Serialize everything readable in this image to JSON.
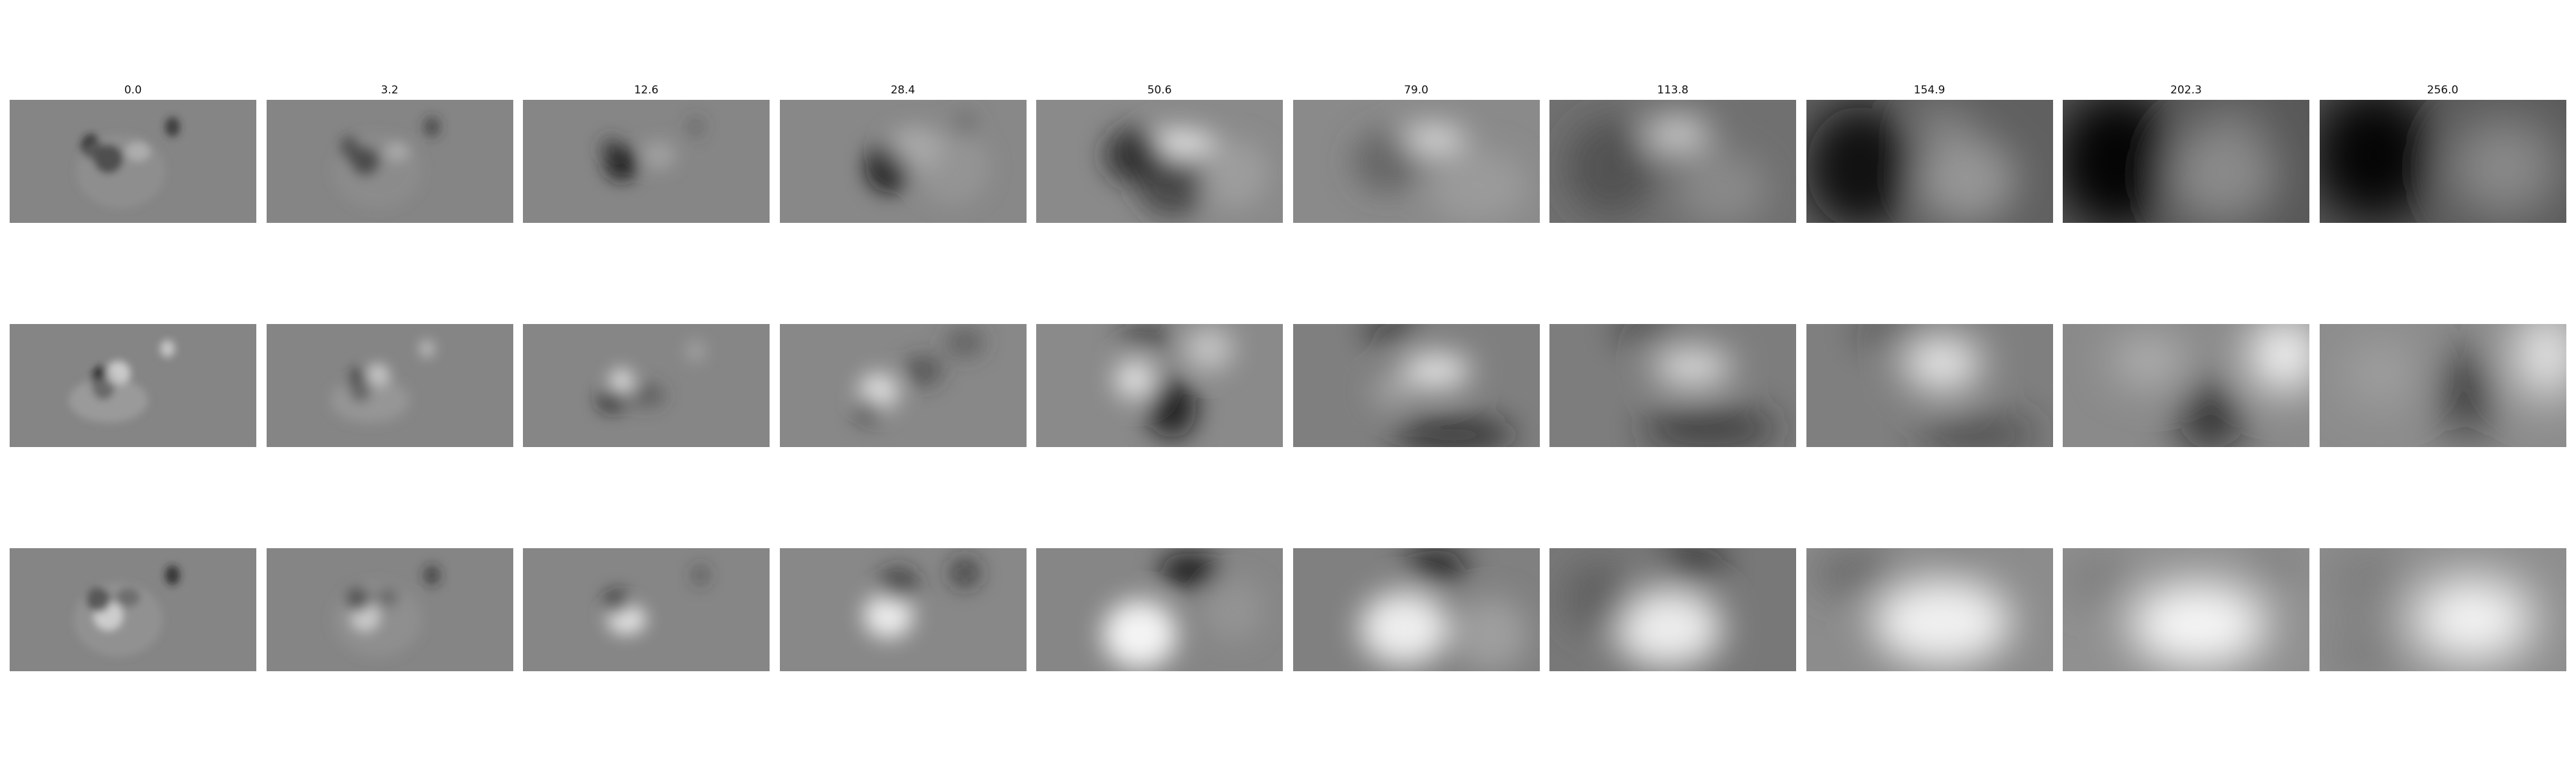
{
  "columns": [
    "0.0",
    "3.2",
    "12.6",
    "28.4",
    "50.6",
    "79.0",
    "113.8",
    "154.9",
    "202.3",
    "256.0"
  ],
  "rows": [
    {
      "panels": [
        {
          "bg": "#858585",
          "blobs": [
            [
              0.4,
              0.48,
              0.06,
              0.12,
              "#1a1a1a",
              0.9
            ],
            [
              0.33,
              0.38,
              0.04,
              0.1,
              "#202020",
              0.8
            ],
            [
              0.52,
              0.42,
              0.05,
              0.08,
              "#c8c8c8",
              0.7
            ],
            [
              0.66,
              0.22,
              0.03,
              0.08,
              "#2a2a2a",
              0.8
            ],
            [
              0.45,
              0.58,
              0.18,
              0.3,
              "#a0a0a0",
              0.35
            ]
          ]
        },
        {
          "bg": "#858585",
          "blobs": [
            [
              0.4,
              0.5,
              0.06,
              0.12,
              "#1c1c1c",
              0.85
            ],
            [
              0.34,
              0.4,
              0.04,
              0.1,
              "#222222",
              0.75
            ],
            [
              0.53,
              0.42,
              0.05,
              0.08,
              "#c4c4c4",
              0.65
            ],
            [
              0.67,
              0.22,
              0.03,
              0.08,
              "#2c2c2c",
              0.75
            ],
            [
              0.45,
              0.58,
              0.18,
              0.3,
              "#9c9c9c",
              0.3
            ]
          ]
        },
        {
          "bg": "#868686",
          "blobs": [
            [
              0.4,
              0.52,
              0.07,
              0.14,
              "#151515",
              0.85
            ],
            [
              0.36,
              0.4,
              0.05,
              0.1,
              "#333333",
              0.6
            ],
            [
              0.55,
              0.45,
              0.07,
              0.12,
              "#b8b8b8",
              0.5
            ],
            [
              0.7,
              0.22,
              0.03,
              0.08,
              "#444444",
              0.5
            ]
          ]
        },
        {
          "bg": "#888888",
          "blobs": [
            [
              0.44,
              0.55,
              0.09,
              0.2,
              "#0c0c0c",
              0.9
            ],
            [
              0.55,
              0.4,
              0.12,
              0.18,
              "#c0c0c0",
              0.6
            ],
            [
              0.7,
              0.55,
              0.15,
              0.3,
              "#a0a0a0",
              0.5
            ],
            [
              0.75,
              0.2,
              0.05,
              0.1,
              "#555555",
              0.5
            ]
          ]
        },
        {
          "bg": "#8a8a8a",
          "blobs": [
            [
              0.56,
              0.35,
              0.17,
              0.1,
              "#f0f0f0",
              0.95
            ],
            [
              0.4,
              0.45,
              0.12,
              0.22,
              "#202020",
              0.85
            ],
            [
              0.55,
              0.7,
              0.14,
              0.25,
              "#303030",
              0.7
            ],
            [
              0.8,
              0.6,
              0.14,
              0.28,
              "#b0b0b0",
              0.5
            ]
          ]
        },
        {
          "bg": "#8a8a8a",
          "blobs": [
            [
              0.56,
              0.32,
              0.14,
              0.09,
              "#f8f8f8",
              0.95
            ],
            [
              0.38,
              0.5,
              0.14,
              0.26,
              "#505050",
              0.6
            ],
            [
              0.75,
              0.7,
              0.2,
              0.3,
              "#b0b0b0",
              0.45
            ]
          ]
        },
        {
          "bg": "#707070",
          "blobs": [
            [
              0.52,
              0.28,
              0.13,
              0.12,
              "#eeeeee",
              0.95
            ],
            [
              0.25,
              0.55,
              0.18,
              0.4,
              "#404040",
              0.65
            ],
            [
              0.7,
              0.72,
              0.18,
              0.3,
              "#9a9a9a",
              0.6
            ]
          ]
        },
        {
          "bg": "#606060",
          "blobs": [
            [
              0.22,
              0.55,
              0.22,
              0.5,
              "#0a0a0a",
              0.95
            ],
            [
              0.65,
              0.65,
              0.2,
              0.35,
              "#a8a8a8",
              0.75
            ],
            [
              0.55,
              0.2,
              0.12,
              0.15,
              "#999999",
              0.6
            ]
          ]
        },
        {
          "bg": "#585858",
          "blobs": [
            [
              0.22,
              0.5,
              0.24,
              0.55,
              "#050505",
              0.95
            ],
            [
              0.65,
              0.6,
              0.22,
              0.4,
              "#a0a0a0",
              0.7
            ],
            [
              0.7,
              0.15,
              0.12,
              0.15,
              "#888888",
              0.5
            ]
          ]
        },
        {
          "bg": "#5a5a5a",
          "blobs": [
            [
              0.22,
              0.45,
              0.25,
              0.55,
              "#050505",
              0.95
            ],
            [
              0.75,
              0.55,
              0.22,
              0.4,
              "#9e9e9e",
              0.7
            ]
          ]
        }
      ]
    },
    {
      "panels": [
        {
          "bg": "#858585",
          "blobs": [
            [
              0.38,
              0.48,
              0.05,
              0.14,
              "#121212",
              0.85
            ],
            [
              0.44,
              0.4,
              0.05,
              0.1,
              "#dcdcdc",
              0.8
            ],
            [
              0.4,
              0.62,
              0.16,
              0.18,
              "#b0b0b0",
              0.5
            ],
            [
              0.64,
              0.2,
              0.03,
              0.07,
              "#e0e0e0",
              0.7
            ]
          ]
        },
        {
          "bg": "#858585",
          "blobs": [
            [
              0.38,
              0.5,
              0.05,
              0.14,
              "#161616",
              0.8
            ],
            [
              0.45,
              0.42,
              0.05,
              0.1,
              "#d8d8d8",
              0.75
            ],
            [
              0.42,
              0.62,
              0.16,
              0.18,
              "#aaaaaa",
              0.45
            ],
            [
              0.65,
              0.2,
              0.03,
              0.07,
              "#dcdcdc",
              0.65
            ]
          ]
        },
        {
          "bg": "#868686",
          "blobs": [
            [
              0.4,
              0.48,
              0.05,
              0.12,
              "#e8e8e8",
              0.85
            ],
            [
              0.36,
              0.62,
              0.06,
              0.1,
              "#1a1a1a",
              0.7
            ],
            [
              0.5,
              0.58,
              0.08,
              0.1,
              "#444444",
              0.5
            ],
            [
              0.7,
              0.22,
              0.03,
              0.08,
              "#cccccc",
              0.55
            ]
          ]
        },
        {
          "bg": "#888888",
          "blobs": [
            [
              0.4,
              0.55,
              0.08,
              0.15,
              "#f0f0f0",
              0.85
            ],
            [
              0.36,
              0.7,
              0.05,
              0.1,
              "#101010",
              0.7
            ],
            [
              0.58,
              0.38,
              0.08,
              0.12,
              "#303030",
              0.6
            ],
            [
              0.75,
              0.15,
              0.08,
              0.12,
              "#444444",
              0.55
            ]
          ]
        },
        {
          "bg": "#8a8a8a",
          "blobs": [
            [
              0.4,
              0.45,
              0.08,
              0.15,
              "#f2f2f2",
              0.9
            ],
            [
              0.55,
              0.68,
              0.1,
              0.25,
              "#0f0f0f",
              0.85
            ],
            [
              0.7,
              0.2,
              0.1,
              0.18,
              "#e0e0e0",
              0.65
            ],
            [
              0.45,
              0.1,
              0.12,
              0.1,
              "#222222",
              0.6
            ]
          ]
        },
        {
          "bg": "#7f7f7f",
          "blobs": [
            [
              0.58,
              0.38,
              0.14,
              0.14,
              "#f5f5f5",
              0.9
            ],
            [
              0.4,
              0.55,
              0.08,
              0.12,
              "#c8c8c8",
              0.55
            ],
            [
              0.4,
              0.05,
              0.12,
              0.08,
              "#101010",
              0.8
            ],
            [
              0.65,
              0.9,
              0.25,
              0.15,
              "#202020",
              0.7
            ]
          ]
        },
        {
          "bg": "#7d7d7d",
          "blobs": [
            [
              0.58,
              0.35,
              0.16,
              0.14,
              "#f5f5f5",
              0.9
            ],
            [
              0.4,
              0.05,
              0.14,
              0.08,
              "#141414",
              0.8
            ],
            [
              0.65,
              0.85,
              0.28,
              0.18,
              "#282828",
              0.7
            ]
          ]
        },
        {
          "bg": "#7f7f7f",
          "blobs": [
            [
              0.55,
              0.32,
              0.16,
              0.22,
              "#f8f8f8",
              0.9
            ],
            [
              0.35,
              0.05,
              0.14,
              0.1,
              "#222222",
              0.75
            ],
            [
              0.7,
              0.9,
              0.25,
              0.15,
              "#333333",
              0.65
            ]
          ]
        },
        {
          "bg": "#8a8a8a",
          "blobs": [
            [
              0.9,
              0.25,
              0.15,
              0.3,
              "#fcfcfc",
              0.95
            ],
            [
              0.6,
              0.75,
              0.12,
              0.3,
              "#0a0a0a",
              0.85
            ],
            [
              0.35,
              0.3,
              0.15,
              0.2,
              "#d0d0d0",
              0.6
            ]
          ]
        },
        {
          "bg": "#8c8c8c",
          "blobs": [
            [
              0.92,
              0.25,
              0.12,
              0.35,
              "#fcfcfc",
              0.95
            ],
            [
              0.6,
              0.55,
              0.1,
              0.35,
              "#0f0f0f",
              0.85
            ],
            [
              0.25,
              0.4,
              0.15,
              0.25,
              "#b5b5b5",
              0.55
            ]
          ]
        }
      ]
    },
    {
      "panels": [
        {
          "bg": "#858585",
          "blobs": [
            [
              0.4,
              0.55,
              0.06,
              0.12,
              "#f0f0f0",
              0.85
            ],
            [
              0.36,
              0.42,
              0.05,
              0.1,
              "#151515",
              0.8
            ],
            [
              0.48,
              0.4,
              0.05,
              0.08,
              "#2a2a2a",
              0.6
            ],
            [
              0.66,
              0.22,
              0.03,
              0.08,
              "#1e1e1e",
              0.8
            ],
            [
              0.44,
              0.58,
              0.18,
              0.3,
              "#aaaaaa",
              0.35
            ]
          ]
        },
        {
          "bg": "#858585",
          "blobs": [
            [
              0.4,
              0.56,
              0.06,
              0.12,
              "#ececec",
              0.8
            ],
            [
              0.37,
              0.42,
              0.05,
              0.1,
              "#181818",
              0.75
            ],
            [
              0.49,
              0.4,
              0.05,
              0.08,
              "#2e2e2e",
              0.55
            ],
            [
              0.67,
              0.22,
              0.03,
              0.08,
              "#222222",
              0.75
            ],
            [
              0.45,
              0.58,
              0.18,
              0.3,
              "#a6a6a6",
              0.3
            ]
          ]
        },
        {
          "bg": "#868686",
          "blobs": [
            [
              0.42,
              0.58,
              0.08,
              0.12,
              "#f2f2f2",
              0.85
            ],
            [
              0.38,
              0.44,
              0.05,
              0.1,
              "#1a1a1a",
              0.75
            ],
            [
              0.72,
              0.22,
              0.03,
              0.08,
              "#333333",
              0.6
            ]
          ]
        },
        {
          "bg": "#888888",
          "blobs": [
            [
              0.44,
              0.55,
              0.1,
              0.18,
              "#f8f8f8",
              0.9
            ],
            [
              0.48,
              0.3,
              0.08,
              0.14,
              "#222222",
              0.7
            ],
            [
              0.75,
              0.2,
              0.06,
              0.12,
              "#222222",
              0.7
            ]
          ]
        },
        {
          "bg": "#868686",
          "blobs": [
            [
              0.42,
              0.7,
              0.15,
              0.28,
              "#fafafa",
              0.95
            ],
            [
              0.62,
              0.18,
              0.12,
              0.14,
              "#101010",
              0.9
            ],
            [
              0.8,
              0.5,
              0.12,
              0.25,
              "#a0a0a0",
              0.5
            ]
          ]
        },
        {
          "bg": "#808080",
          "blobs": [
            [
              0.45,
              0.65,
              0.18,
              0.3,
              "#fafafa",
              0.9
            ],
            [
              0.58,
              0.15,
              0.12,
              0.14,
              "#0a0a0a",
              0.9
            ],
            [
              0.8,
              0.7,
              0.15,
              0.3,
              "#b8b8b8",
              0.55
            ]
          ]
        },
        {
          "bg": "#787878",
          "blobs": [
            [
              0.48,
              0.65,
              0.22,
              0.32,
              "#fafafa",
              0.9
            ],
            [
              0.58,
              0.15,
              0.12,
              0.14,
              "#0d0d0d",
              0.9
            ],
            [
              0.2,
              0.4,
              0.15,
              0.3,
              "#505050",
              0.55
            ]
          ]
        },
        {
          "bg": "#8c8c8c",
          "blobs": [
            [
              0.55,
              0.6,
              0.28,
              0.35,
              "#fcfcfc",
              0.9
            ],
            [
              0.2,
              0.2,
              0.18,
              0.2,
              "#505050",
              0.55
            ],
            [
              0.6,
              0.15,
              0.12,
              0.12,
              "#666666",
              0.5
            ]
          ]
        },
        {
          "bg": "#909090",
          "blobs": [
            [
              0.55,
              0.62,
              0.28,
              0.35,
              "#fcfcfc",
              0.95
            ],
            [
              0.85,
              0.15,
              0.12,
              0.15,
              "#666666",
              0.5
            ],
            [
              0.15,
              0.25,
              0.15,
              0.2,
              "#6a6a6a",
              0.5
            ]
          ]
        },
        {
          "bg": "#8e8e8e",
          "blobs": [
            [
              0.62,
              0.58,
              0.25,
              0.35,
              "#fcfcfc",
              0.95
            ],
            [
              0.2,
              0.25,
              0.18,
              0.25,
              "#6a6a6a",
              0.5
            ],
            [
              0.2,
              0.85,
              0.18,
              0.2,
              "#666666",
              0.5
            ]
          ]
        }
      ]
    }
  ]
}
